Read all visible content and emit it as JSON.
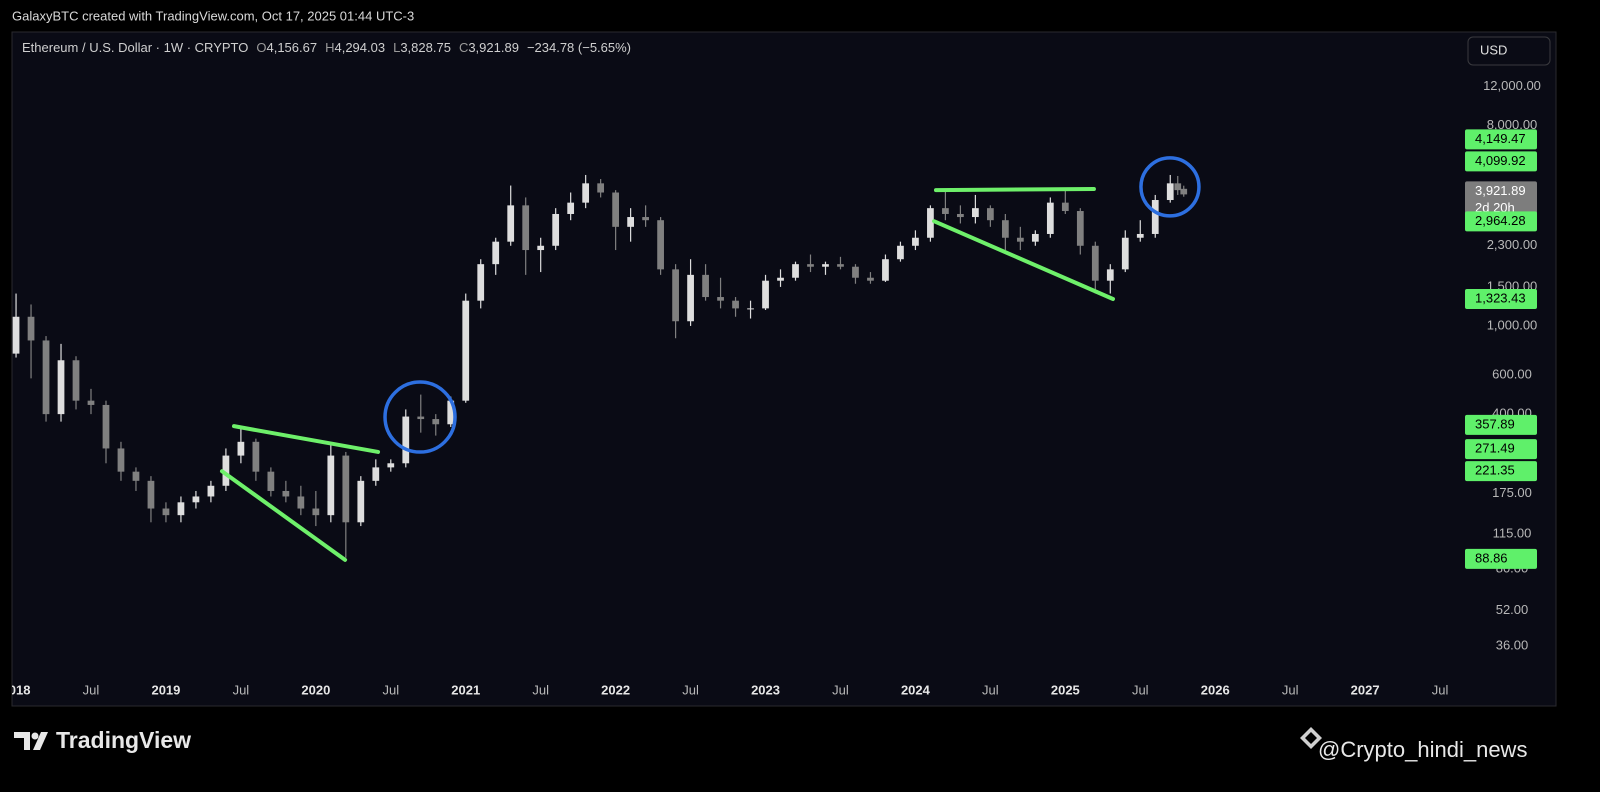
{
  "header": {
    "credit": "GalaxyBTC created with TradingView.com, Oct 17, 2025 01:44 UTC-3"
  },
  "chart_data": {
    "type": "candlestick",
    "legend": {
      "symbol": "Ethereum / U.S. Dollar · 1W · CRYPTO",
      "ohlc": [
        {
          "key": "O",
          "text": "4,156.67"
        },
        {
          "key": "H",
          "text": "4,294.03"
        },
        {
          "key": "L",
          "text": "3,828.75"
        },
        {
          "key": "C",
          "text": "3,921.89"
        }
      ],
      "change": "−234.78 (−5.65%)"
    },
    "currency": "USD",
    "log_scale": true,
    "grid": false,
    "up_color": "#dedede",
    "down_color": "#808080",
    "x": [
      2018.0,
      2018.1,
      2018.2,
      2018.3,
      2018.4,
      2018.5,
      2018.6,
      2018.7,
      2018.8,
      2018.9,
      2019.0,
      2019.1,
      2019.2,
      2019.3,
      2019.4,
      2019.5,
      2019.6,
      2019.7,
      2019.8,
      2019.9,
      2020.0,
      2020.1,
      2020.2,
      2020.3,
      2020.4,
      2020.5,
      2020.6,
      2020.7,
      2020.8,
      2020.9,
      2021.0,
      2021.1,
      2021.2,
      2021.3,
      2021.4,
      2021.5,
      2021.6,
      2021.7,
      2021.8,
      2021.9,
      2022.0,
      2022.1,
      2022.2,
      2022.3,
      2022.4,
      2022.5,
      2022.6,
      2022.7,
      2022.8,
      2022.9,
      2023.0,
      2023.1,
      2023.2,
      2023.3,
      2023.4,
      2023.5,
      2023.6,
      2023.7,
      2023.8,
      2023.9,
      2024.0,
      2024.1,
      2024.2,
      2024.3,
      2024.4,
      2024.5,
      2024.6,
      2024.7,
      2024.8,
      2024.9,
      2025.0,
      2025.1,
      2025.2,
      2025.3,
      2025.4,
      2025.5,
      2025.6,
      2025.7,
      2025.75,
      2025.79
    ],
    "open": [
      750,
      1100,
      860,
      400,
      700,
      460,
      440,
      280,
      220,
      200,
      150,
      140,
      160,
      170,
      190,
      260,
      300,
      220,
      180,
      170,
      150,
      140,
      260,
      130,
      200,
      230,
      240,
      390,
      380,
      360,
      460,
      1300,
      1900,
      2400,
      3500,
      2200,
      2300,
      3200,
      3600,
      4400,
      4000,
      2800,
      3100,
      3000,
      1800,
      1050,
      1700,
      1350,
      1300,
      1200,
      1200,
      1600,
      1650,
      1900,
      1850,
      1900,
      1850,
      1650,
      1600,
      2000,
      2300,
      2500,
      3400,
      3200,
      3100,
      3400,
      3000,
      2500,
      2400,
      2600,
      3600,
      3300,
      2300,
      1600,
      1800,
      2500,
      2600,
      3700,
      4400,
      4156.67
    ],
    "high": [
      1400,
      1250,
      900,
      830,
      730,
      520,
      460,
      300,
      230,
      210,
      160,
      170,
      180,
      200,
      280,
      350,
      310,
      230,
      200,
      190,
      180,
      290,
      270,
      210,
      250,
      250,
      420,
      490,
      400,
      480,
      1400,
      2000,
      2500,
      4300,
      3800,
      2500,
      3400,
      4000,
      4800,
      4600,
      4100,
      3400,
      3500,
      3100,
      1900,
      2000,
      1900,
      1650,
      1350,
      1300,
      1700,
      1800,
      1950,
      2100,
      1950,
      2050,
      1900,
      1750,
      2100,
      2400,
      2700,
      3500,
      4100,
      3500,
      3900,
      3500,
      3200,
      2800,
      2700,
      3800,
      4100,
      3400,
      2400,
      1900,
      2700,
      3000,
      3900,
      4800,
      4750,
      4294.03
    ],
    "low": [
      720,
      580,
      370,
      370,
      420,
      400,
      240,
      200,
      180,
      130,
      130,
      130,
      150,
      160,
      180,
      240,
      200,
      170,
      160,
      140,
      125,
      130,
      90,
      125,
      190,
      220,
      230,
      330,
      320,
      350,
      450,
      1200,
      1700,
      2300,
      1700,
      1750,
      2200,
      3000,
      3400,
      3800,
      2200,
      2400,
      2800,
      1700,
      880,
      1000,
      1300,
      1200,
      1100,
      1080,
      1180,
      1500,
      1600,
      1750,
      1700,
      1800,
      1550,
      1550,
      1580,
      1950,
      2200,
      2400,
      3000,
      2900,
      2900,
      2800,
      2200,
      2200,
      2300,
      2500,
      3200,
      2100,
      1400,
      1400,
      1750,
      2400,
      2500,
      3600,
      3900,
      3828.75
    ],
    "close": [
      1100,
      860,
      400,
      700,
      460,
      440,
      280,
      220,
      200,
      150,
      140,
      160,
      170,
      190,
      260,
      300,
      220,
      180,
      170,
      150,
      140,
      260,
      130,
      200,
      230,
      240,
      390,
      380,
      360,
      460,
      1300,
      1900,
      2400,
      3500,
      2200,
      2300,
      3200,
      3600,
      4400,
      4000,
      2800,
      3100,
      3000,
      1800,
      1050,
      1700,
      1350,
      1300,
      1200,
      1200,
      1600,
      1650,
      1900,
      1850,
      1900,
      1850,
      1650,
      1600,
      2000,
      2300,
      2500,
      3400,
      3200,
      3100,
      3400,
      3000,
      2500,
      2400,
      2600,
      3600,
      3300,
      2300,
      1600,
      1800,
      2500,
      2600,
      3700,
      4400,
      4100,
      3921.89
    ],
    "xlim": [
      2017.973,
      2027.633
    ],
    "ylim": [
      26.6,
      21200
    ],
    "xticks": [
      {
        "value": 2018,
        "label": "2018"
      },
      {
        "value": 2018.5,
        "label": "Jul"
      },
      {
        "value": 2019,
        "label": "2019"
      },
      {
        "value": 2019.5,
        "label": "Jul"
      },
      {
        "value": 2020,
        "label": "2020"
      },
      {
        "value": 2020.5,
        "label": "Jul"
      },
      {
        "value": 2021,
        "label": "2021"
      },
      {
        "value": 2021.5,
        "label": "Jul"
      },
      {
        "value": 2022,
        "label": "2022"
      },
      {
        "value": 2022.5,
        "label": "Jul"
      },
      {
        "value": 2023,
        "label": "2023"
      },
      {
        "value": 2023.5,
        "label": "Jul"
      },
      {
        "value": 2024,
        "label": "2024"
      },
      {
        "value": 2024.5,
        "label": "Jul"
      },
      {
        "value": 2025,
        "label": "2025"
      },
      {
        "value": 2025.5,
        "label": "Jul"
      },
      {
        "value": 2026,
        "label": "2026"
      },
      {
        "value": 2026.5,
        "label": "Jul"
      },
      {
        "value": 2027,
        "label": "2027"
      },
      {
        "value": 2027.5,
        "label": "Jul"
      }
    ],
    "yticks": [
      {
        "value": 12000,
        "label": "12,000.00"
      },
      {
        "value": 8000,
        "label": "8,000.00"
      },
      {
        "value": 2300,
        "label": "2,300.00"
      },
      {
        "value": 1500,
        "label": "1,500.00"
      },
      {
        "value": 1000,
        "label": "1,000.00"
      },
      {
        "value": 600,
        "label": "600.00"
      },
      {
        "value": 400,
        "label": "400.00"
      },
      {
        "value": 175,
        "label": "175.00"
      },
      {
        "value": 115,
        "label": "115.00"
      },
      {
        "value": 80,
        "label": "80.00"
      },
      {
        "value": 52,
        "label": "52.00"
      },
      {
        "value": 36,
        "label": "36.00"
      }
    ],
    "price_tags": [
      {
        "value": 4149.47,
        "label": "4,149.47",
        "color": "#5ff06a"
      },
      {
        "value": 4099.92,
        "label": "4,099.92",
        "color": "#5ff06a"
      },
      {
        "value": 3921.89,
        "label": "3,921.89",
        "sublabel": "2d 20h",
        "color": "#7d7d7d"
      },
      {
        "value": 2964.28,
        "label": "2,964.28",
        "color": "#5ff06a"
      },
      {
        "value": 1323.43,
        "label": "1,323.43",
        "color": "#5ff06a"
      },
      {
        "value": 357.89,
        "label": "357.89",
        "color": "#5ff06a"
      },
      {
        "value": 271.49,
        "label": "271.49",
        "color": "#5ff06a"
      },
      {
        "value": 221.35,
        "label": "221.35",
        "color": "#5ff06a"
      },
      {
        "value": 88.86,
        "label": "88.86",
        "color": "#5ff06a"
      }
    ],
    "trendlines": {
      "color": "#6ef06a",
      "lines": [
        {
          "x": [
            2019.454,
            2020.415
          ],
          "y": [
            353,
            270
          ]
        },
        {
          "x": [
            2019.374,
            2020.195
          ],
          "y": [
            221,
            88
          ]
        },
        {
          "x": [
            2024.137,
            2025.191
          ],
          "y": [
            4100,
            4150
          ]
        },
        {
          "x": [
            2024.124,
            2025.318
          ],
          "y": [
            2970,
            1323
          ]
        }
      ]
    },
    "circles": {
      "color": "#2d6fe0",
      "centers": [
        {
          "x": 2020.695,
          "y": 388
        },
        {
          "x": 2025.698,
          "y": 4240
        }
      ]
    }
  },
  "footer": {
    "brand": "TradingView",
    "watermark": "@Crypto_hindi_news"
  }
}
